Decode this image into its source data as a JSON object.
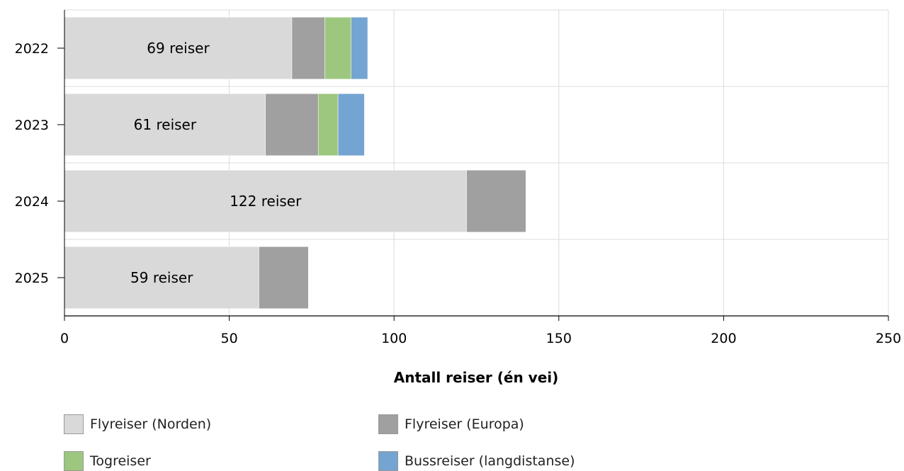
{
  "chart_data": {
    "type": "bar",
    "orientation": "horizontal",
    "stacked": true,
    "categories": [
      "2022",
      "2023",
      "2024",
      "2025"
    ],
    "series": [
      {
        "name": "Flyreiser (Norden)",
        "color": "#d9d9d9",
        "values": [
          69,
          61,
          122,
          59
        ]
      },
      {
        "name": "Flyreiser (Europa)",
        "color": "#a0a0a0",
        "values": [
          10,
          16,
          18,
          15
        ]
      },
      {
        "name": "Togreiser",
        "color": "#9dc77f",
        "values": [
          8,
          6,
          0,
          0
        ]
      },
      {
        "name": "Bussreiser (langdistanse)",
        "color": "#74a4d2",
        "values": [
          5,
          8,
          0,
          0
        ]
      }
    ],
    "data_labels": [
      "69 reiser",
      "61 reiser",
      "122 reiser",
      "59 reiser"
    ],
    "xlabel": "Antall reiser (én vei)",
    "ylabel": "",
    "xlim": [
      0,
      250
    ],
    "xticks": [
      "0",
      "50",
      "100",
      "150",
      "200",
      "250"
    ],
    "grid": true,
    "legend_position": "bottom"
  }
}
